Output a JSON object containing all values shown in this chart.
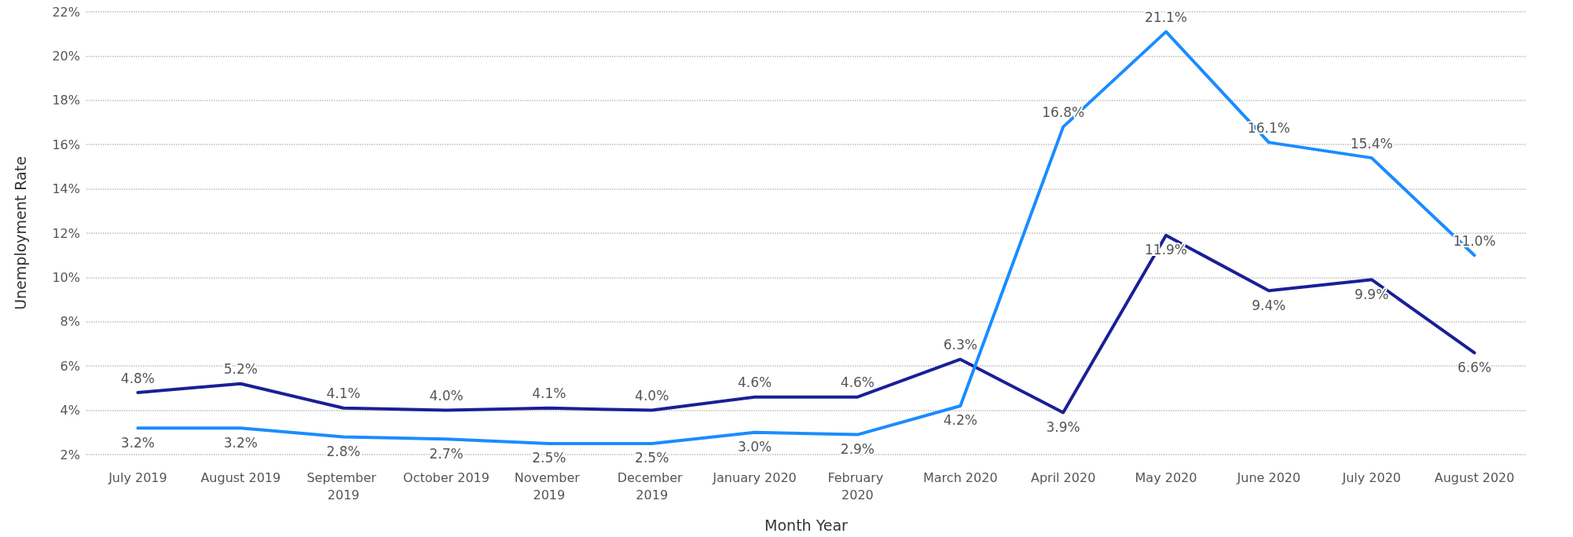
{
  "chart_data": {
    "type": "line",
    "xlabel": "Month Year",
    "ylabel": "Unemployment Rate",
    "categories": [
      "July 2019",
      "August 2019",
      "September 2019",
      "October 2019",
      "November 2019",
      "December 2019",
      "January 2020",
      "February 2020",
      "March 2020",
      "April 2020",
      "May 2020",
      "June 2020",
      "July 2020",
      "August 2020"
    ],
    "series": [
      {
        "color": "#1a1f96",
        "values": [
          4.8,
          5.2,
          4.1,
          4.0,
          4.1,
          4.0,
          4.6,
          4.6,
          6.3,
          3.9,
          11.9,
          9.4,
          9.9,
          6.6
        ],
        "value_labels": [
          "4.8%",
          "5.2%",
          "4.1%",
          "4.0%",
          "4.1%",
          "4.0%",
          "4.6%",
          "4.6%",
          "6.3%",
          "3.9%",
          "11.9%",
          "9.4%",
          "9.9%",
          "6.6%"
        ]
      },
      {
        "color": "#1a8cff",
        "values": [
          3.2,
          3.2,
          2.8,
          2.7,
          2.5,
          2.5,
          3.0,
          2.9,
          4.2,
          16.8,
          21.1,
          16.1,
          15.4,
          11.0
        ],
        "value_labels": [
          "3.2%",
          "3.2%",
          "2.8%",
          "2.7%",
          "2.5%",
          "2.5%",
          "3.0%",
          "2.9%",
          "4.2%",
          "16.8%",
          "21.1%",
          "16.1%",
          "15.4%",
          "11.0%"
        ]
      }
    ],
    "ylim": [
      2,
      22
    ],
    "yticks": [
      {
        "value": 2,
        "label": "2%"
      },
      {
        "value": 4,
        "label": "4%"
      },
      {
        "value": 6,
        "label": "6%"
      },
      {
        "value": 8,
        "label": "8%"
      },
      {
        "value": 10,
        "label": "10%"
      },
      {
        "value": 12,
        "label": "12%"
      },
      {
        "value": 14,
        "label": "14%"
      },
      {
        "value": 16,
        "label": "16%"
      },
      {
        "value": 18,
        "label": "18%"
      },
      {
        "value": 20,
        "label": "20%"
      },
      {
        "value": 22,
        "label": "22%"
      }
    ],
    "grid": "y",
    "marker": "none",
    "line_style": "solid"
  }
}
